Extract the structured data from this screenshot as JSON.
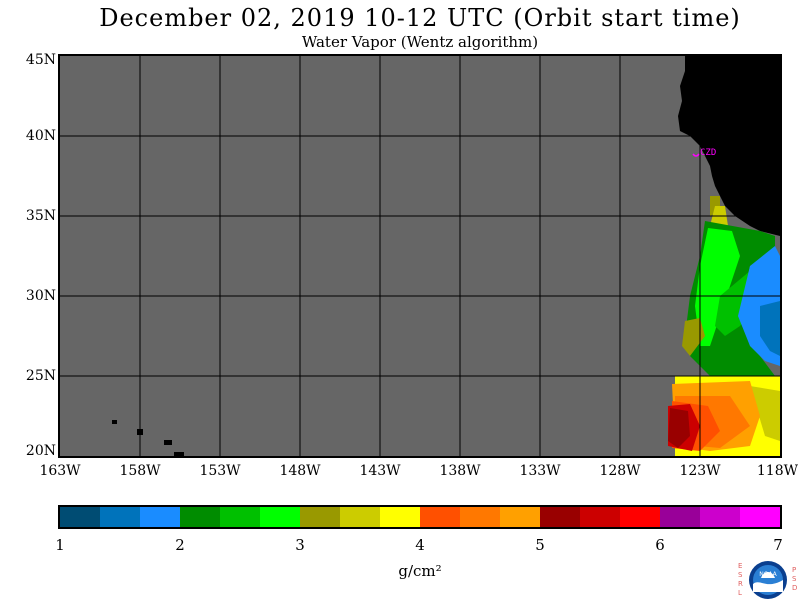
{
  "title": "December 02, 2019  10-12 UTC  (Orbit start time)",
  "subtitle": "Water Vapor (Wentz algorithm)",
  "station_label": "CZD",
  "y_axis": [
    "45N",
    "40N",
    "35N",
    "30N",
    "25N",
    "20N"
  ],
  "x_axis": [
    "163W",
    "158W",
    "153W",
    "148W",
    "143W",
    "138W",
    "133W",
    "128W",
    "123W",
    "118W"
  ],
  "colorbar": {
    "labels": [
      "1",
      "2",
      "3",
      "4",
      "5",
      "6",
      "7"
    ],
    "unit": "g/cm²",
    "colors": [
      "#004c73",
      "#0073bb",
      "#1a8cff",
      "#008c00",
      "#00c000",
      "#00ff00",
      "#999900",
      "#cccc00",
      "#ffff00",
      "#ff5000",
      "#ff7800",
      "#ffa000",
      "#990000",
      "#cc0000",
      "#ff0000",
      "#990099",
      "#cc00cc",
      "#ff00ff"
    ]
  },
  "colors": {
    "ocean_no_data": "#666666",
    "land": "#000000",
    "grid": "#000000",
    "station": "#ff00ff"
  },
  "logo": {
    "left_letters": "ESRL",
    "right_letters": "PSD",
    "text": "NOAA"
  }
}
